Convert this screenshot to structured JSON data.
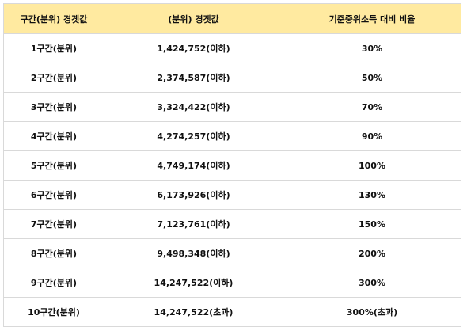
{
  "table": {
    "headers": [
      "구간(분위) 경곗값",
      "(분위) 경곗값",
      "기준중위소득 대비 비율"
    ],
    "rows": [
      [
        "1구간(분위)",
        "1,424,752(이하)",
        "30%"
      ],
      [
        "2구간(분위)",
        "2,374,587(이하)",
        "50%"
      ],
      [
        "3구간(분위)",
        "3,324,422(이하)",
        "70%"
      ],
      [
        "4구간(분위)",
        "4,274,257(이하)",
        "90%"
      ],
      [
        "5구간(분위)",
        "4,749,174(이하)",
        "100%"
      ],
      [
        "6구간(분위)",
        "6,173,926(이하)",
        "130%"
      ],
      [
        "7구간(분위)",
        "7,123,761(이하)",
        "150%"
      ],
      [
        "8구간(분위)",
        "9,498,348(이하)",
        "200%"
      ],
      [
        "9구간(분위)",
        "14,247,522(이하)",
        "300%"
      ],
      [
        "10구간(분위)",
        "14,247,522(초과)",
        "300%(초과)"
      ]
    ]
  },
  "colors": {
    "header_bg": "#ffeaa0",
    "border": "#d9d9d9",
    "text": "#111111"
  }
}
